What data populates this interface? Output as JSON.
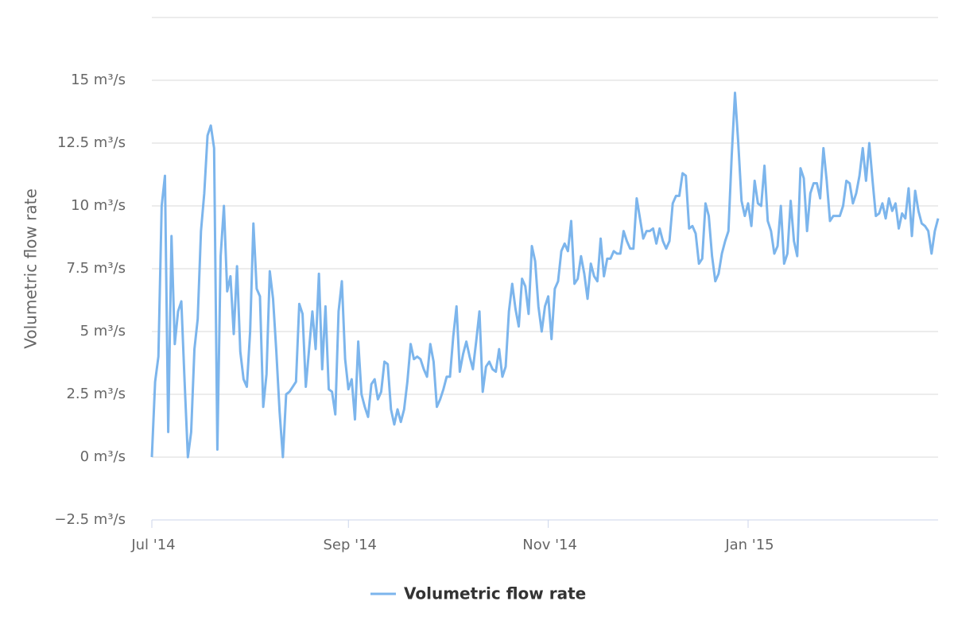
{
  "chart_data": {
    "type": "line",
    "y_label": "Volumetric flow rate",
    "xlim": [
      0,
      240
    ],
    "xticks": [
      {
        "value": 0,
        "label": "Jul '14"
      },
      {
        "value": 60,
        "label": "Sep '14"
      },
      {
        "value": 121,
        "label": "Nov '14"
      },
      {
        "value": 182,
        "label": "Jan '15"
      }
    ],
    "ylim": [
      -2.5,
      17.5
    ],
    "yticks": [
      {
        "value": -2.5,
        "label": "−2.5 m³/s"
      },
      {
        "value": 0,
        "label": "0 m³/s"
      },
      {
        "value": 2.5,
        "label": "2.5 m³/s"
      },
      {
        "value": 5,
        "label": "5 m³/s"
      },
      {
        "value": 7.5,
        "label": "7.5 m³/s"
      },
      {
        "value": 10,
        "label": "10 m³/s"
      },
      {
        "value": 12.5,
        "label": "12.5 m³/s"
      },
      {
        "value": 15,
        "label": "15 m³/s"
      }
    ],
    "grid": true,
    "legend": "bottom",
    "series": [
      {
        "name": "Volumetric flow rate",
        "color": "#7cb5ec",
        "values": [
          0,
          3,
          4,
          10,
          11.2,
          1,
          8.8,
          4.5,
          5.8,
          6.2,
          3,
          0,
          1,
          4.3,
          5.5,
          9,
          10.5,
          12.8,
          13.2,
          12.3,
          0.3,
          8,
          10,
          6.6,
          7.2,
          4.9,
          7.6,
          4.2,
          3.1,
          2.8,
          5,
          9.3,
          6.7,
          6.4,
          2,
          3.3,
          7.4,
          6.3,
          4.2,
          1.8,
          0,
          2.5,
          2.6,
          2.8,
          3,
          6.1,
          5.7,
          2.8,
          4.3,
          5.8,
          4.3,
          7.3,
          3.5,
          6,
          2.7,
          2.6,
          1.7,
          5.8,
          7,
          3.9,
          2.7,
          3.1,
          1.5,
          4.6,
          2.5,
          2,
          1.6,
          2.9,
          3.1,
          2.3,
          2.6,
          3.8,
          3.7,
          1.9,
          1.3,
          1.9,
          1.4,
          1.9,
          3,
          4.5,
          3.9,
          4,
          3.9,
          3.5,
          3.2,
          4.5,
          3.8,
          2,
          2.3,
          2.7,
          3.2,
          3.2,
          4.8,
          6,
          3.4,
          4.1,
          4.6,
          4,
          3.5,
          4.6,
          5.8,
          2.6,
          3.6,
          3.8,
          3.5,
          3.4,
          4.3,
          3.2,
          3.6,
          5.8,
          6.9,
          5.9,
          5.2,
          7.1,
          6.8,
          5.7,
          8.4,
          7.8,
          6,
          5,
          6,
          6.4,
          4.7,
          6.7,
          7,
          8.2,
          8.5,
          8.2,
          9.4,
          6.9,
          7.1,
          8,
          7.3,
          6.3,
          7.7,
          7.2,
          7,
          8.7,
          7.2,
          7.9,
          7.9,
          8.2,
          8.1,
          8.1,
          9,
          8.6,
          8.3,
          8.3,
          10.3,
          9.5,
          8.7,
          9,
          9,
          9.1,
          8.5,
          9.1,
          8.6,
          8.3,
          8.6,
          10.1,
          10.4,
          10.4,
          11.3,
          11.2,
          9.1,
          9.2,
          8.9,
          7.7,
          7.9,
          10.1,
          9.6,
          8,
          7,
          7.3,
          8.1,
          8.6,
          9,
          12,
          14.5,
          12.5,
          10.2,
          9.6,
          10.1,
          9.2,
          11,
          10.1,
          10,
          11.6,
          9.4,
          9,
          8.1,
          8.4,
          10,
          7.7,
          8.1,
          10.2,
          8.6,
          8,
          11.5,
          11.1,
          9,
          10.5,
          10.9,
          10.9,
          10.3,
          12.3,
          11,
          9.4,
          9.6,
          9.6,
          9.6,
          10,
          11,
          10.9,
          10.1,
          10.5,
          11.2,
          12.3,
          11,
          12.5,
          11,
          9.6,
          9.7,
          10.1,
          9.5,
          10.3,
          9.8,
          10.1,
          9.1,
          9.7,
          9.5,
          10.7,
          8.8,
          10.6,
          9.8,
          9.3,
          9.2,
          9,
          8.1,
          9,
          9.5
        ]
      }
    ]
  }
}
